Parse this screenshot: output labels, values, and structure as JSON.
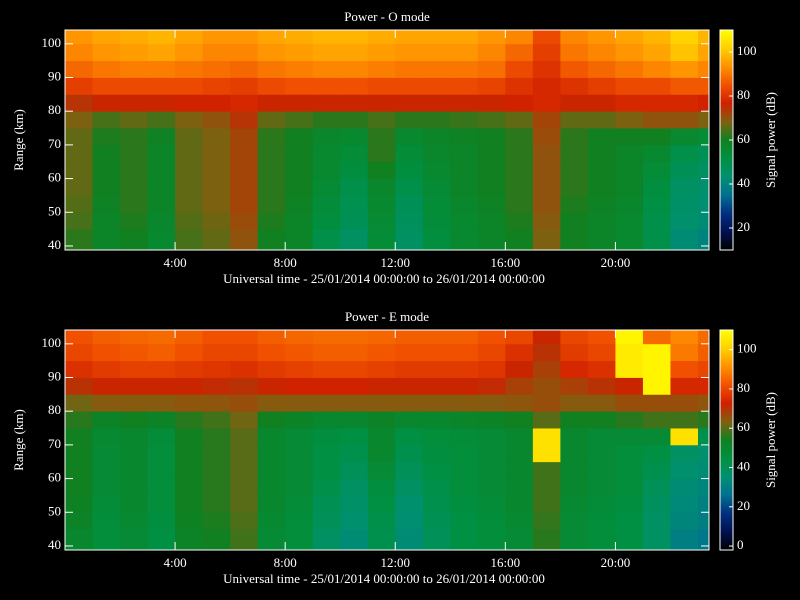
{
  "chart_data": [
    {
      "type": "heatmap",
      "title": "Power - O mode",
      "xlabel": "Universal time - 25/01/2014 00:00:00 to 26/01/2014 00:00:00",
      "ylabel": "Range (km)",
      "colorbar_label": "Signal power (dB)",
      "x_bins": [
        0,
        1,
        2,
        3,
        4,
        5,
        6,
        7,
        8,
        9,
        10,
        11,
        12,
        13,
        14,
        15,
        16,
        17,
        18,
        19,
        20,
        21,
        22,
        23,
        23.4
      ],
      "y_bins": [
        38.8,
        45,
        50,
        55,
        60,
        65,
        70,
        75,
        80,
        85,
        90,
        95,
        100,
        104.1
      ],
      "xlim": [
        0,
        23.4
      ],
      "ylim": [
        38.8,
        104.1
      ],
      "xticks": [
        {
          "value": 4,
          "label": "4:00"
        },
        {
          "value": 8,
          "label": "8:00"
        },
        {
          "value": 12,
          "label": "12:00"
        },
        {
          "value": 16,
          "label": "16:00"
        },
        {
          "value": 20,
          "label": "20:00"
        }
      ],
      "yticks": [
        40,
        50,
        60,
        70,
        80,
        90,
        100
      ],
      "clim": [
        10,
        110
      ],
      "cticks": [
        20,
        40,
        60,
        80,
        100
      ],
      "colormap": [
        "#000000",
        "#001050",
        "#003080",
        "#007090",
        "#009070",
        "#009040",
        "#108020",
        "#806010",
        "#d02000",
        "#f05000",
        "#ff9000",
        "#ffd000",
        "#ffff00"
      ],
      "values": [
        [
          62,
          58,
          60,
          56,
          64,
          66,
          70,
          60,
          58,
          50,
          46,
          54,
          46,
          52,
          56,
          58,
          60,
          68,
          60,
          58,
          56,
          50,
          42,
          40
        ],
        [
          64,
          58,
          61,
          57,
          65,
          67,
          71,
          61,
          58,
          52,
          48,
          55,
          47,
          53,
          56,
          58,
          61,
          69,
          60,
          58,
          56,
          50,
          44,
          42
        ],
        [
          65,
          59,
          62,
          58,
          66,
          68,
          72,
          62,
          59,
          53,
          49,
          56,
          48,
          54,
          57,
          59,
          62,
          70,
          61,
          59,
          57,
          51,
          45,
          43
        ],
        [
          66,
          60,
          62,
          58,
          66,
          68,
          72,
          62,
          60,
          55,
          50,
          57,
          50,
          55,
          58,
          60,
          62,
          70,
          62,
          60,
          58,
          52,
          46,
          44
        ],
        [
          66,
          60,
          62,
          58,
          66,
          68,
          72,
          62,
          60,
          56,
          52,
          60,
          52,
          56,
          58,
          60,
          62,
          70,
          62,
          60,
          58,
          54,
          48,
          46
        ],
        [
          66,
          60,
          62,
          58,
          66,
          68,
          72,
          62,
          60,
          56,
          54,
          62,
          54,
          57,
          58,
          60,
          62,
          70,
          62,
          60,
          58,
          56,
          50,
          48
        ],
        [
          66,
          61,
          62,
          59,
          66,
          68,
          72,
          62,
          60,
          57,
          56,
          62,
          56,
          58,
          59,
          60,
          62,
          71,
          62,
          60,
          60,
          60,
          56,
          54
        ],
        [
          68,
          64,
          66,
          64,
          68,
          70,
          74,
          66,
          64,
          62,
          62,
          64,
          62,
          62,
          63,
          64,
          66,
          72,
          66,
          66,
          68,
          70,
          70,
          68
        ],
        [
          74,
          76,
          76,
          76,
          77,
          77,
          78,
          76,
          76,
          76,
          76,
          76,
          76,
          76,
          76,
          76,
          77,
          78,
          76,
          76,
          78,
          78,
          78,
          77
        ],
        [
          82,
          84,
          84,
          84,
          84,
          83,
          82,
          84,
          85,
          85,
          85,
          84,
          84,
          84,
          84,
          83,
          80,
          78,
          80,
          82,
          84,
          84,
          86,
          86
        ],
        [
          88,
          90,
          91,
          91,
          90,
          89,
          88,
          90,
          91,
          92,
          92,
          91,
          90,
          90,
          90,
          89,
          84,
          80,
          86,
          88,
          90,
          92,
          94,
          92
        ],
        [
          92,
          94,
          95,
          96,
          94,
          92,
          92,
          94,
          95,
          96,
          96,
          95,
          94,
          94,
          94,
          92,
          88,
          82,
          90,
          92,
          94,
          96,
          100,
          96
        ],
        [
          94,
          96,
          97,
          98,
          96,
          94,
          94,
          96,
          97,
          98,
          98,
          97,
          96,
          96,
          96,
          94,
          92,
          84,
          92,
          94,
          96,
          98,
          102,
          98
        ]
      ]
    },
    {
      "type": "heatmap",
      "title": "Power - E mode",
      "xlabel": "Universal time - 25/01/2014 00:00:00 to 26/01/2014 00:00:00",
      "ylabel": "Range (km)",
      "colorbar_label": "Signal power (dB)",
      "x_bins": [
        0,
        1,
        2,
        3,
        4,
        5,
        6,
        7,
        8,
        9,
        10,
        11,
        12,
        13,
        14,
        15,
        16,
        17,
        18,
        19,
        20,
        21,
        22,
        23,
        23.4
      ],
      "y_bins": [
        38.8,
        45,
        50,
        55,
        60,
        65,
        70,
        75,
        80,
        85,
        90,
        95,
        100,
        104.1
      ],
      "xlim": [
        0,
        23.4
      ],
      "ylim": [
        38.8,
        104.1
      ],
      "xticks": [
        {
          "value": 4,
          "label": "4:00"
        },
        {
          "value": 8,
          "label": "8:00"
        },
        {
          "value": 12,
          "label": "12:00"
        },
        {
          "value": 16,
          "label": "16:00"
        },
        {
          "value": 20,
          "label": "20:00"
        }
      ],
      "yticks": [
        40,
        50,
        60,
        70,
        80,
        90,
        100
      ],
      "clim": [
        -2,
        110
      ],
      "cticks": [
        0,
        20,
        40,
        60,
        80,
        100
      ],
      "colormap": [
        "#000000",
        "#001050",
        "#003080",
        "#007090",
        "#009070",
        "#009040",
        "#108020",
        "#806010",
        "#d02000",
        "#f05000",
        "#ff9000",
        "#ffd000",
        "#ffff00"
      ],
      "values": [
        [
          50,
          46,
          48,
          44,
          52,
          54,
          58,
          48,
          46,
          38,
          34,
          42,
          34,
          40,
          44,
          46,
          48,
          56,
          48,
          46,
          44,
          38,
          30,
          28
        ],
        [
          52,
          46,
          49,
          45,
          53,
          55,
          59,
          49,
          46,
          40,
          36,
          43,
          35,
          41,
          44,
          46,
          49,
          57,
          48,
          46,
          44,
          38,
          32,
          30
        ],
        [
          53,
          47,
          50,
          46,
          54,
          56,
          60,
          50,
          47,
          41,
          37,
          44,
          36,
          42,
          45,
          47,
          50,
          58,
          49,
          47,
          45,
          39,
          33,
          31
        ],
        [
          54,
          48,
          50,
          46,
          54,
          56,
          60,
          50,
          48,
          43,
          38,
          45,
          38,
          43,
          46,
          48,
          50,
          58,
          50,
          48,
          46,
          40,
          34,
          32
        ],
        [
          54,
          48,
          50,
          46,
          54,
          56,
          60,
          50,
          48,
          44,
          40,
          48,
          40,
          44,
          46,
          48,
          50,
          58,
          50,
          48,
          46,
          42,
          36,
          34
        ],
        [
          54,
          48,
          50,
          46,
          54,
          56,
          60,
          50,
          48,
          44,
          42,
          50,
          42,
          45,
          46,
          48,
          50,
          104,
          50,
          48,
          46,
          44,
          38,
          36
        ],
        [
          54,
          49,
          50,
          47,
          54,
          56,
          60,
          50,
          48,
          45,
          44,
          50,
          44,
          46,
          47,
          48,
          50,
          104,
          50,
          48,
          48,
          48,
          104,
          42
        ],
        [
          56,
          52,
          54,
          52,
          56,
          58,
          62,
          54,
          52,
          50,
          50,
          52,
          50,
          50,
          51,
          52,
          54,
          60,
          54,
          54,
          56,
          58,
          58,
          56
        ],
        [
          62,
          64,
          64,
          64,
          65,
          65,
          66,
          64,
          64,
          64,
          64,
          64,
          64,
          64,
          64,
          64,
          65,
          66,
          64,
          64,
          66,
          66,
          66,
          65
        ],
        [
          70,
          72,
          72,
          72,
          72,
          71,
          70,
          72,
          73,
          73,
          73,
          72,
          72,
          72,
          72,
          71,
          68,
          66,
          68,
          70,
          72,
          108,
          74,
          74
        ],
        [
          76,
          78,
          79,
          79,
          78,
          77,
          76,
          78,
          79,
          80,
          80,
          79,
          78,
          78,
          78,
          77,
          72,
          68,
          74,
          76,
          106,
          108,
          82,
          80
        ],
        [
          80,
          82,
          83,
          84,
          82,
          80,
          80,
          82,
          83,
          84,
          84,
          83,
          82,
          82,
          82,
          80,
          76,
          70,
          78,
          80,
          106,
          108,
          88,
          84
        ],
        [
          82,
          84,
          85,
          86,
          84,
          82,
          82,
          84,
          85,
          86,
          86,
          85,
          84,
          84,
          84,
          82,
          80,
          72,
          80,
          82,
          108,
          86,
          90,
          86
        ]
      ]
    }
  ]
}
